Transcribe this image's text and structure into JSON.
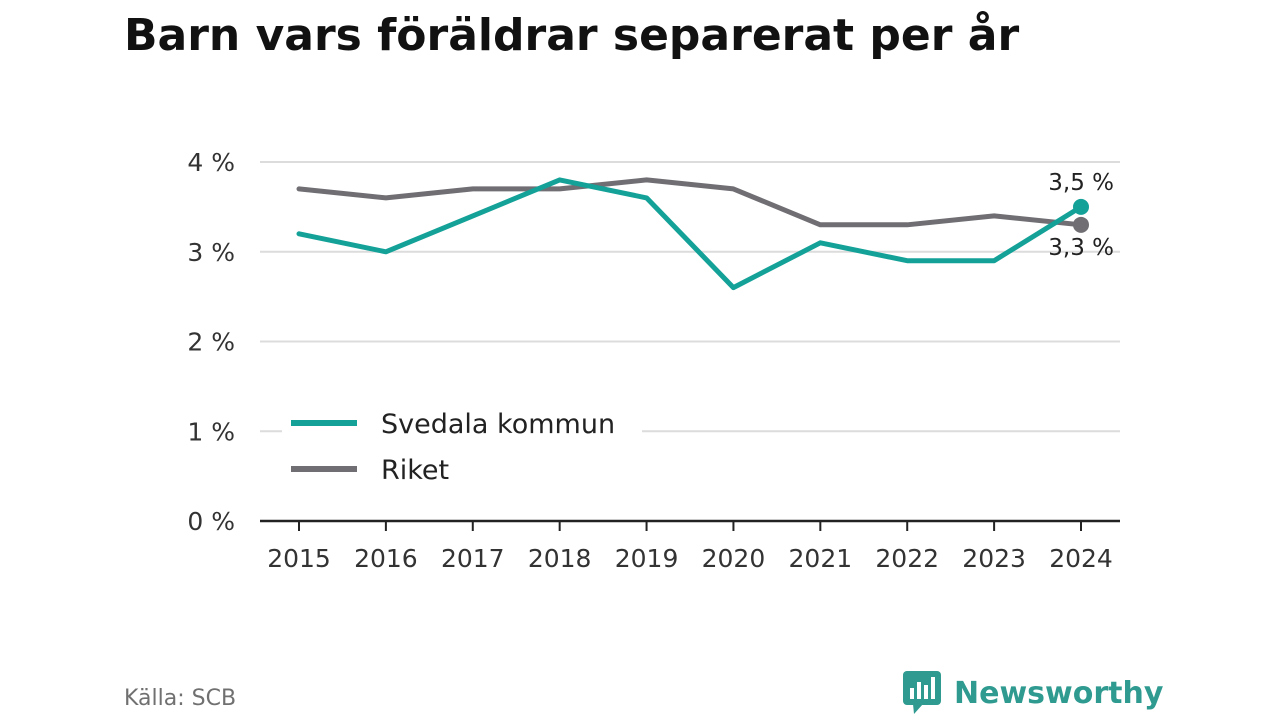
{
  "title": "Barn vars föräldrar separerat per år",
  "source": "Källa: SCB",
  "brand": {
    "name": "Newsworthy",
    "icon": "newsworthy-logo-icon"
  },
  "colors": {
    "svedala": "#13a198",
    "riket": "#706e73",
    "grid": "#dcdcdc",
    "axis": "#222222",
    "brand": "#2f9a90"
  },
  "chart_data": {
    "type": "line",
    "title": "Barn vars föräldrar separerat per år",
    "xlabel": "",
    "ylabel": "",
    "x": [
      "2015",
      "2016",
      "2017",
      "2018",
      "2019",
      "2020",
      "2021",
      "2022",
      "2023",
      "2024"
    ],
    "ylim": [
      0,
      4
    ],
    "y_ticks": [
      {
        "value": 0,
        "label": "0 %"
      },
      {
        "value": 1,
        "label": "1 %"
      },
      {
        "value": 2,
        "label": "2 %"
      },
      {
        "value": 3,
        "label": "3 %"
      },
      {
        "value": 4,
        "label": "4 %"
      }
    ],
    "grid": true,
    "legend_position": "bottom-left",
    "series": [
      {
        "name": "Svedala kommun",
        "color": "#13a198",
        "values": [
          3.2,
          3.0,
          3.4,
          3.8,
          3.6,
          2.6,
          3.1,
          2.9,
          2.9,
          3.5
        ],
        "end_label": "3,5 %"
      },
      {
        "name": "Riket",
        "color": "#706e73",
        "values": [
          3.7,
          3.6,
          3.7,
          3.7,
          3.8,
          3.7,
          3.3,
          3.3,
          3.4,
          3.3
        ],
        "end_label": "3,3 %"
      }
    ]
  }
}
